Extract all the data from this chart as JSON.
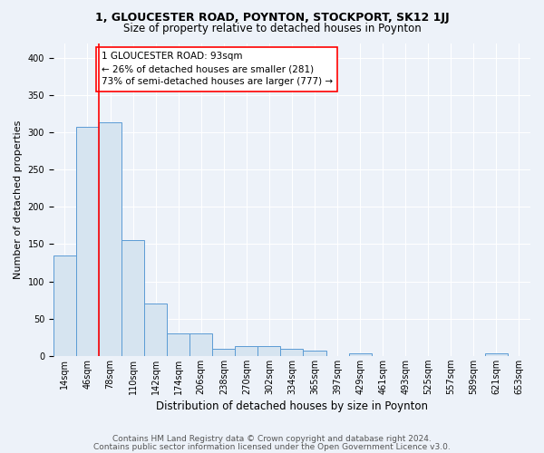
{
  "title1": "1, GLOUCESTER ROAD, POYNTON, STOCKPORT, SK12 1JJ",
  "title2": "Size of property relative to detached houses in Poynton",
  "xlabel": "Distribution of detached houses by size in Poynton",
  "ylabel": "Number of detached properties",
  "bar_labels": [
    "14sqm",
    "46sqm",
    "78sqm",
    "110sqm",
    "142sqm",
    "174sqm",
    "206sqm",
    "238sqm",
    "270sqm",
    "302sqm",
    "334sqm",
    "365sqm",
    "397sqm",
    "429sqm",
    "461sqm",
    "493sqm",
    "525sqm",
    "557sqm",
    "589sqm",
    "621sqm",
    "653sqm"
  ],
  "bar_values": [
    135,
    307,
    313,
    156,
    70,
    30,
    30,
    10,
    13,
    13,
    10,
    7,
    0,
    3,
    0,
    0,
    0,
    0,
    0,
    3,
    0
  ],
  "bar_color": "#d6e4f0",
  "bar_edge_color": "#5b9bd5",
  "vline_color": "red",
  "annotation_text": "1 GLOUCESTER ROAD: 93sqm\n← 26% of detached houses are smaller (281)\n73% of semi-detached houses are larger (777) →",
  "annotation_box_color": "white",
  "annotation_box_edge_color": "red",
  "footnote1": "Contains HM Land Registry data © Crown copyright and database right 2024.",
  "footnote2": "Contains public sector information licensed under the Open Government Licence v3.0.",
  "ylim": [
    0,
    420
  ],
  "background_color": "#edf2f9",
  "grid_color": "#ffffff",
  "title1_fontsize": 9,
  "title2_fontsize": 8.5,
  "xlabel_fontsize": 8.5,
  "ylabel_fontsize": 8,
  "tick_fontsize": 7,
  "footnote_fontsize": 6.5
}
